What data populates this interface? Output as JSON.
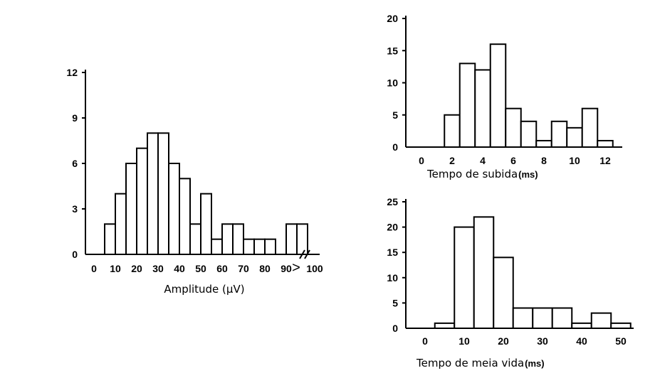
{
  "chart_data": [
    {
      "type": "bar",
      "xlabel": "Amplitude (μV)",
      "x_bins": [
        [
          5,
          10
        ],
        [
          10,
          15
        ],
        [
          15,
          20
        ],
        [
          20,
          25
        ],
        [
          25,
          30
        ],
        [
          30,
          35
        ],
        [
          35,
          40
        ],
        [
          40,
          45
        ],
        [
          45,
          50
        ],
        [
          50,
          55
        ],
        [
          55,
          60
        ],
        [
          60,
          65
        ],
        [
          65,
          70
        ],
        [
          70,
          75
        ],
        [
          75,
          80
        ],
        [
          80,
          85
        ],
        [
          85,
          90
        ],
        [
          90,
          95
        ],
        [
          95,
          100
        ]
      ],
      "values": [
        2,
        4,
        6,
        7,
        8,
        8,
        6,
        5,
        2,
        4,
        1,
        2,
        2,
        1,
        1,
        1,
        0,
        2,
        2
      ],
      "x_ticks": [
        "0",
        "10",
        "20",
        "30",
        "40",
        "50",
        "60",
        "70",
        "80",
        "90",
        ">",
        "100"
      ],
      "y_ticks": [
        "0",
        "3",
        "6",
        "9",
        "12"
      ],
      "xlim": [
        0,
        100
      ],
      "ylim": [
        0,
        12
      ],
      "axis_break": true
    },
    {
      "type": "bar",
      "xlabel": "Tempo de subida",
      "xlabel_unit": "(ms)",
      "x_bins": [
        [
          1.5,
          2.5
        ],
        [
          2.5,
          3.5
        ],
        [
          3.5,
          4.5
        ],
        [
          4.5,
          5.5
        ],
        [
          5.5,
          6.5
        ],
        [
          6.5,
          7.5
        ],
        [
          7.5,
          8.5
        ],
        [
          8.5,
          9.5
        ],
        [
          9.5,
          10.5
        ],
        [
          10.5,
          11.5
        ],
        [
          11.5,
          12.5
        ]
      ],
      "values": [
        5,
        13,
        12,
        16,
        6,
        4,
        1,
        4,
        3,
        6,
        1
      ],
      "x_ticks": [
        "0",
        "2",
        "4",
        "6",
        "8",
        "10",
        "12"
      ],
      "y_ticks": [
        "0",
        "5",
        "10",
        "15",
        "20"
      ],
      "xlim": [
        -1,
        14
      ],
      "ylim": [
        0,
        20
      ]
    },
    {
      "type": "bar",
      "xlabel": "Tempo de meia vida",
      "xlabel_unit": "(ms)",
      "x_bins": [
        [
          2.5,
          7.5
        ],
        [
          7.5,
          12.5
        ],
        [
          12.5,
          17.5
        ],
        [
          17.5,
          22.5
        ],
        [
          22.5,
          27.5
        ],
        [
          27.5,
          32.5
        ],
        [
          32.5,
          37.5
        ],
        [
          37.5,
          42.5
        ],
        [
          42.5,
          47.5
        ],
        [
          47.5,
          52.5
        ]
      ],
      "values": [
        1,
        20,
        22,
        14,
        4,
        4,
        4,
        1,
        3,
        1
      ],
      "x_ticks": [
        "0",
        "10",
        "20",
        "30",
        "40",
        "50"
      ],
      "y_ticks": [
        "0",
        "5",
        "10",
        "15",
        "20",
        "25"
      ],
      "xlim": [
        -5,
        55
      ],
      "ylim": [
        0,
        25
      ]
    }
  ]
}
